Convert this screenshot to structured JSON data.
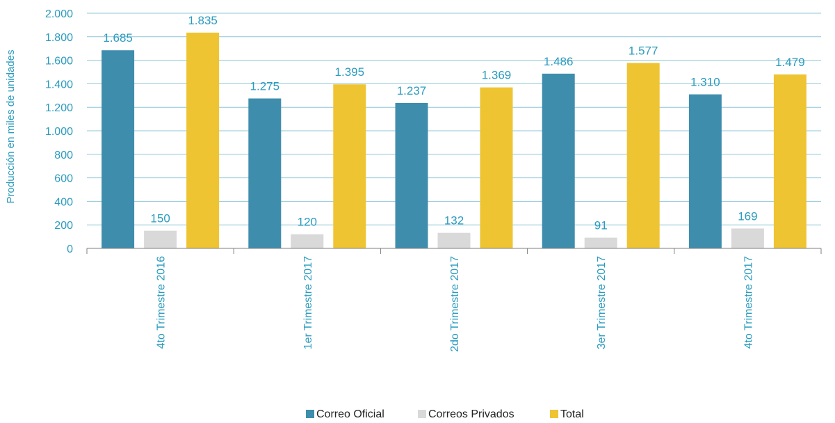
{
  "chart_data": {
    "type": "bar",
    "title": "",
    "xlabel": "",
    "ylabel": "Producción en miles de unidades",
    "ylim": [
      0,
      2000
    ],
    "yticks": [
      0,
      200,
      400,
      600,
      800,
      1000,
      1200,
      1400,
      1600,
      1800,
      2000
    ],
    "ytick_labels": [
      "0",
      "200",
      "400",
      "600",
      "800",
      "1.000",
      "1.200",
      "1.400",
      "1.600",
      "1.800",
      "2.000"
    ],
    "grid": true,
    "legend_position": "bottom",
    "categories": [
      "4to Trimestre 2016",
      "1er Trimestre 2017",
      "2do Trimestre 2017",
      "3er Trimestre 2017",
      "4to Trimestre 2017"
    ],
    "series": [
      {
        "name": "Correo Oficial",
        "color": "#3f8dad",
        "values": [
          1685,
          1275,
          1237,
          1486,
          1310
        ],
        "labels": [
          "1.685",
          "1.275",
          "1.237",
          "1.486",
          "1.310"
        ]
      },
      {
        "name": "Correos Privados",
        "color": "#d9d9d9",
        "values": [
          150,
          120,
          132,
          91,
          169
        ],
        "labels": [
          "150",
          "120",
          "132",
          "91",
          "169"
        ]
      },
      {
        "name": "Total",
        "color": "#eec432",
        "values": [
          1835,
          1395,
          1369,
          1577,
          1479
        ],
        "labels": [
          "1.835",
          "1.395",
          "1.369",
          "1.577",
          "1.479"
        ]
      }
    ],
    "colors": {
      "text": "#2a9bbe",
      "gridline": "#8fc6d8",
      "axis": "#7f7f7f"
    }
  }
}
